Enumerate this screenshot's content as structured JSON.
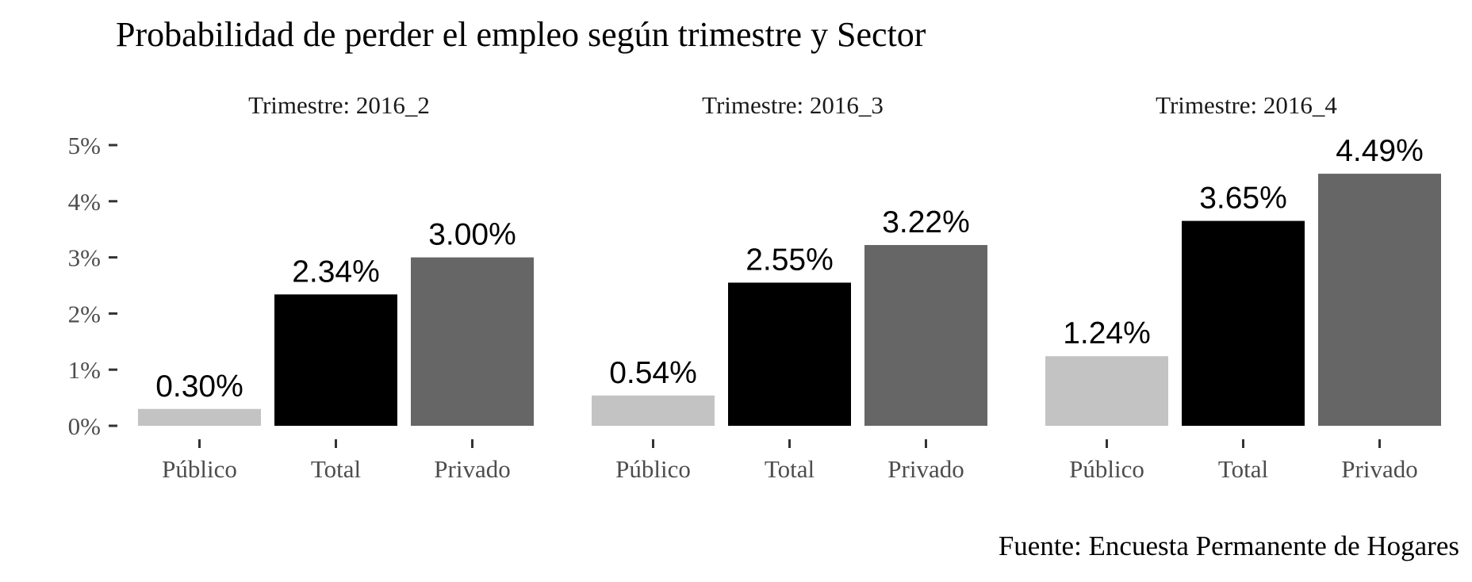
{
  "chart_data": {
    "type": "bar",
    "title": "Probabilidad de perder el empleo según trimestre y Sector",
    "caption": "Fuente: Encuesta Permanente de Hogares",
    "categories": [
      "Público",
      "Total",
      "Privado"
    ],
    "y_ticks": [
      "0%",
      "1%",
      "2%",
      "3%",
      "4%",
      "5%"
    ],
    "ylim": [
      0,
      5
    ],
    "grid": false,
    "colors": {
      "Público": "#c3c3c3",
      "Total": "#000000",
      "Privado": "#666666"
    },
    "panels": [
      {
        "strip": "Trimestre: 2016_2",
        "values": [
          0.3,
          2.34,
          3.0
        ],
        "labels": [
          "0.30%",
          "2.34%",
          "3.00%"
        ]
      },
      {
        "strip": "Trimestre: 2016_3",
        "values": [
          0.54,
          2.55,
          3.22
        ],
        "labels": [
          "0.54%",
          "2.55%",
          "3.22%"
        ]
      },
      {
        "strip": "Trimestre: 2016_4",
        "values": [
          1.24,
          3.65,
          4.49
        ],
        "labels": [
          "1.24%",
          "3.65%",
          "4.49%"
        ]
      }
    ]
  }
}
